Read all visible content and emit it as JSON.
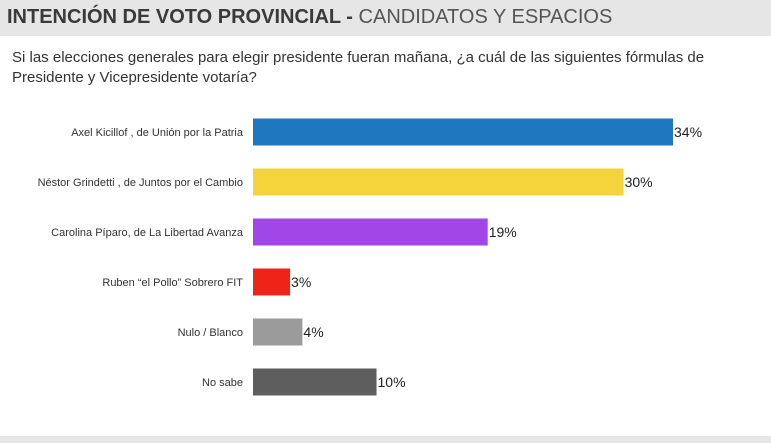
{
  "header": {
    "title_bold": "INTENCIÓN DE VOTO PROVINCIAL -",
    "title_light": "CANDIDATOS Y ESPACIOS"
  },
  "question": "Si las elecciones generales para elegir presidente fueran mañana, ¿a cuál de las siguientes fórmulas de Presidente y Vicepresidente votaría?",
  "chart_data": {
    "type": "bar",
    "orientation": "horizontal",
    "categories": [
      "Axel Kicillof , de Unión por la Patria",
      "Néstor Grindetti , de Juntos por el Cambio",
      "Carolina Píparo, de La Libertad Avanza",
      "Ruben “el Pollo” Sobrero FIT",
      "Nulo / Blanco",
      "No sabe"
    ],
    "values": [
      34,
      30,
      19,
      3,
      4,
      10
    ],
    "value_labels": [
      "34%",
      "30%",
      "19%",
      "3%",
      "4%",
      "10%"
    ],
    "colors": [
      "#1f77c0",
      "#f5d33a",
      "#a346e8",
      "#ee2418",
      "#9b9b9b",
      "#5e5e5e"
    ],
    "xlim": [
      0,
      34
    ],
    "grid": false,
    "legend": "none"
  }
}
